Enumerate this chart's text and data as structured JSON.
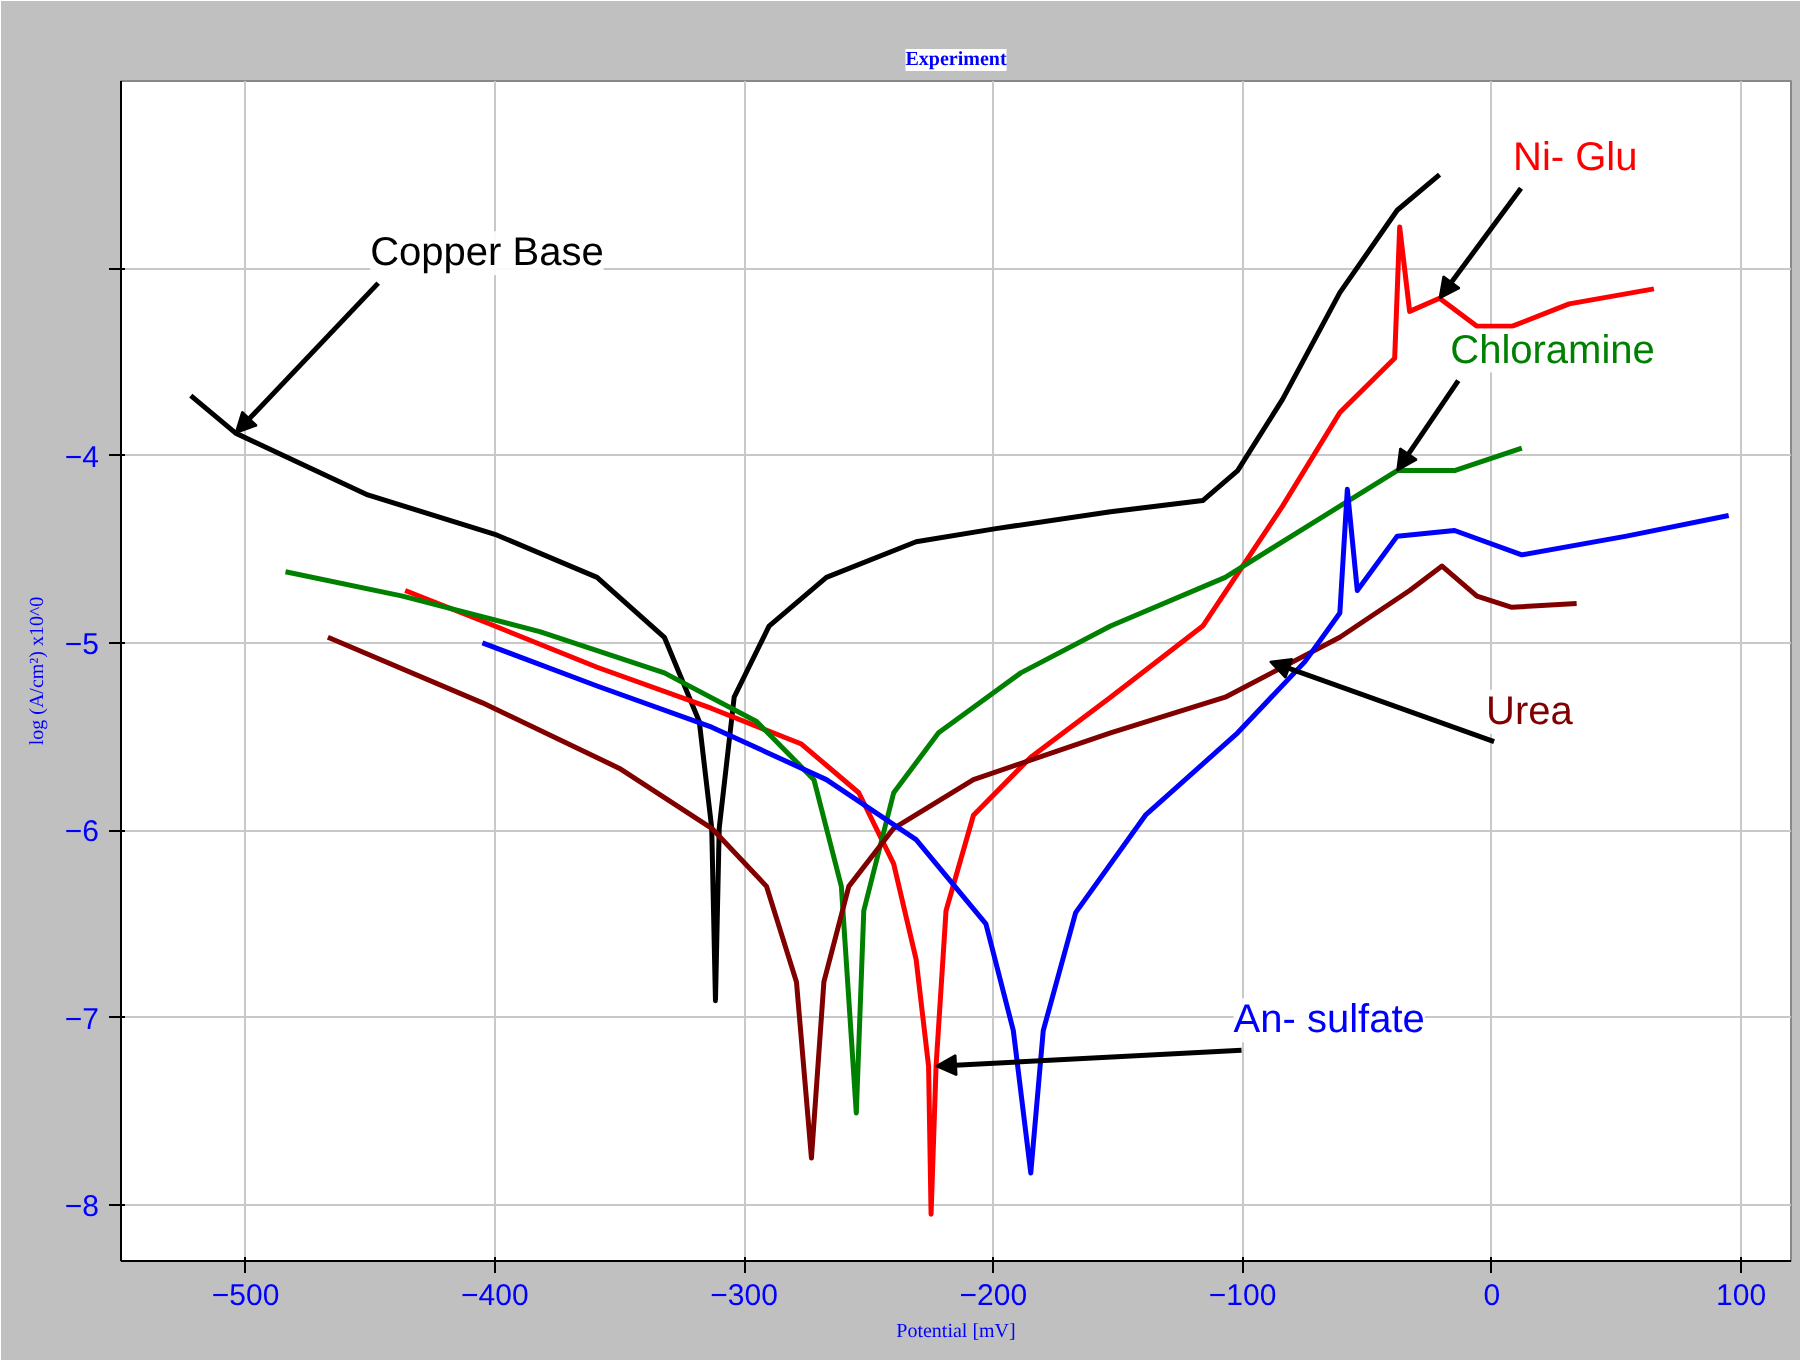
{
  "chart_data": {
    "type": "line",
    "title": "Experiment",
    "xlabel": "Potential [mV]",
    "ylabel": "log (A/cm²) x10^0",
    "xlim": [
      -550,
      120
    ],
    "ylim": [
      -8.3,
      -2
    ],
    "xticks": [
      -500,
      -400,
      -300,
      -200,
      -100,
      0,
      100
    ],
    "yticks": [
      {
        "value": -3,
        "label": null
      },
      -4,
      -5,
      -6,
      -7,
      -8
    ],
    "grid": true,
    "marker": "none",
    "line_style": "solid",
    "series": [
      {
        "color": "#000000",
        "x": [
          -522,
          -504,
          -451,
          -400,
          -359,
          -332,
          -318,
          -313,
          -311.5,
          -310,
          -304,
          -290,
          -267,
          -231,
          -199,
          -153,
          -116,
          -102,
          -84,
          -61,
          -38,
          -21
        ],
        "values": [
          -3.68,
          -3.88,
          -4.21,
          -4.42,
          -4.65,
          -4.97,
          -5.42,
          -5.99,
          -6.91,
          -5.99,
          -5.29,
          -4.91,
          -4.65,
          -4.46,
          -4.39,
          -4.3,
          -4.24,
          -4.08,
          -3.7,
          -3.13,
          -2.69,
          -2.5
        ]
      },
      {
        "color": "#ff0000",
        "x": [
          -436,
          -400,
          -359,
          -313,
          -277,
          -254,
          -240,
          -231,
          -226,
          -225,
          -223,
          -219,
          -208,
          -185,
          -153,
          -116,
          -84,
          -61,
          -39,
          -37,
          -33,
          -21,
          -6,
          8,
          31,
          65
        ],
        "values": [
          -4.72,
          -4.91,
          -5.13,
          -5.35,
          -5.54,
          -5.8,
          -6.18,
          -6.69,
          -7.26,
          -8.05,
          -7.26,
          -6.43,
          -5.92,
          -5.61,
          -5.29,
          -4.91,
          -4.27,
          -3.77,
          -3.48,
          -2.78,
          -3.23,
          -3.16,
          -3.31,
          -3.31,
          -3.19,
          -3.11
        ]
      },
      {
        "color": "#008000",
        "x": [
          -484,
          -437,
          -382,
          -332,
          -295,
          -272,
          -261,
          -255,
          -252,
          -240,
          -222,
          -189,
          -153,
          -107,
          -61,
          -38,
          -15,
          12
        ],
        "values": [
          -4.62,
          -4.75,
          -4.94,
          -5.16,
          -5.42,
          -5.73,
          -6.3,
          -7.51,
          -6.43,
          -5.8,
          -5.48,
          -5.16,
          -4.91,
          -4.65,
          -4.27,
          -4.08,
          -4.08,
          -3.96
        ]
      },
      {
        "color": "#800000",
        "x": [
          -467,
          -405,
          -350,
          -313,
          -291,
          -279,
          -273,
          -268,
          -258,
          -240,
          -208,
          -153,
          -107,
          -61,
          -33,
          -20,
          -6,
          8,
          34
        ],
        "values": [
          -4.97,
          -5.32,
          -5.67,
          -5.99,
          -6.3,
          -6.81,
          -7.75,
          -6.81,
          -6.3,
          -5.99,
          -5.73,
          -5.48,
          -5.29,
          -4.97,
          -4.72,
          -4.59,
          -4.75,
          -4.81,
          -4.79
        ]
      },
      {
        "color": "#0000ff",
        "x": [
          -405,
          -359,
          -313,
          -267,
          -231,
          -203,
          -192,
          -185,
          -180,
          -167,
          -139,
          -102,
          -75,
          -61,
          -58,
          -54,
          -38,
          -15,
          12,
          54,
          95
        ],
        "values": [
          -5.0,
          -5.23,
          -5.45,
          -5.73,
          -6.05,
          -6.5,
          -7.07,
          -7.83,
          -7.07,
          -6.44,
          -5.92,
          -5.48,
          -5.1,
          -4.84,
          -4.18,
          -4.72,
          -4.43,
          -4.4,
          -4.53,
          -4.43,
          -4.32
        ]
      }
    ],
    "annotations": [
      {
        "text": "Copper Base",
        "x": -504,
        "y": -3.88
      },
      {
        "text": "Ni- Glu",
        "x": -21,
        "y": -3.16
      },
      {
        "text": "Chloramine",
        "x": -38,
        "y": -4.08
      },
      {
        "text": "Urea",
        "x": -89,
        "y": -5.1
      },
      {
        "text": "An- sulfate",
        "x": -223,
        "y": -7.26
      }
    ]
  }
}
